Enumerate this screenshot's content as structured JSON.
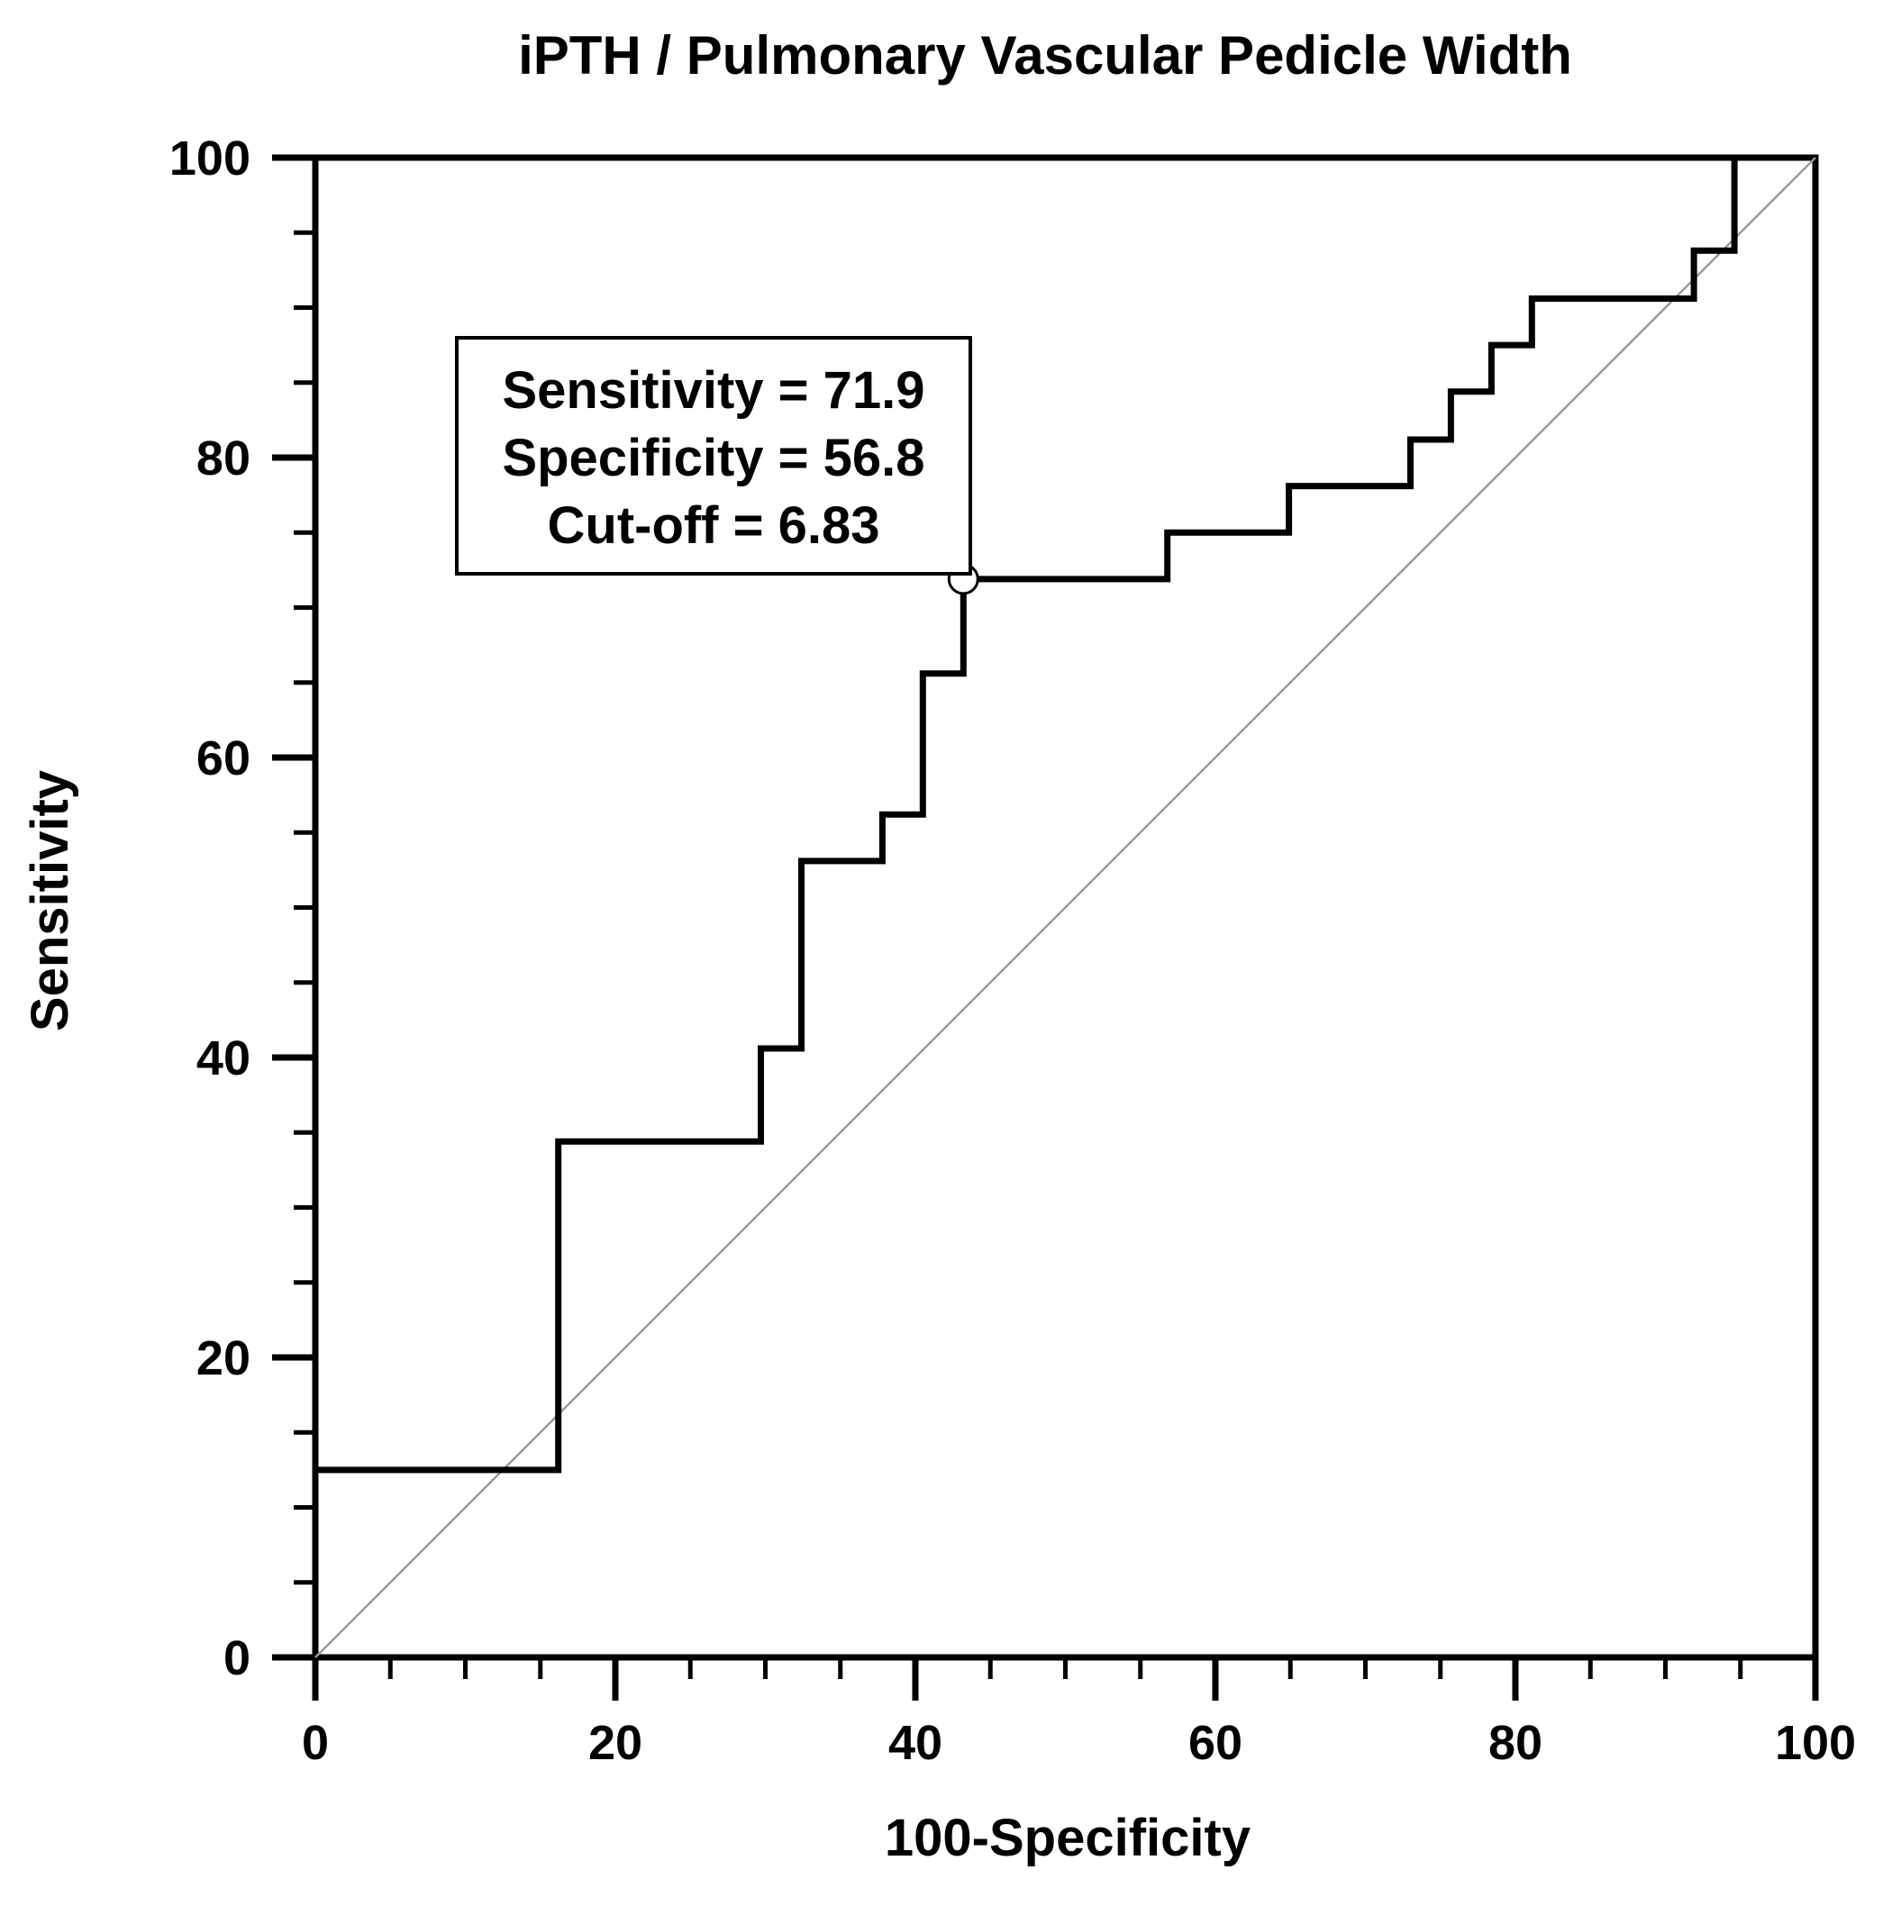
{
  "chart_data": {
    "type": "line",
    "title": "iPTH / Pulmonary Vascular Pedicle Width",
    "xlabel": "100-Specificity",
    "ylabel": "Sensitivity",
    "xlim": [
      0,
      100
    ],
    "ylim": [
      0,
      100
    ],
    "x_ticks": [
      0,
      20,
      40,
      60,
      80,
      100
    ],
    "y_ticks": [
      0,
      20,
      40,
      60,
      80,
      100
    ],
    "x_tick_labels": [
      "0",
      "20",
      "40",
      "60",
      "80",
      "100"
    ],
    "y_tick_labels": [
      "0",
      "20",
      "40",
      "60",
      "80",
      "100"
    ],
    "minor_tick_step": 5,
    "grid": false,
    "series": [
      {
        "name": "ROC curve",
        "style": "step",
        "points": [
          [
            0,
            12.5
          ],
          [
            16.2,
            12.5
          ],
          [
            16.2,
            34.4
          ],
          [
            29.7,
            34.4
          ],
          [
            29.7,
            40.6
          ],
          [
            32.4,
            40.6
          ],
          [
            32.4,
            53.1
          ],
          [
            37.8,
            53.1
          ],
          [
            37.8,
            56.2
          ],
          [
            40.5,
            56.2
          ],
          [
            40.5,
            65.6
          ],
          [
            43.2,
            65.6
          ],
          [
            43.2,
            71.9
          ],
          [
            56.8,
            71.9
          ],
          [
            56.8,
            75.0
          ],
          [
            64.9,
            75.0
          ],
          [
            64.9,
            78.1
          ],
          [
            73.0,
            78.1
          ],
          [
            73.0,
            81.2
          ],
          [
            75.7,
            81.2
          ],
          [
            75.7,
            84.4
          ],
          [
            78.4,
            84.4
          ],
          [
            78.4,
            87.5
          ],
          [
            81.1,
            87.5
          ],
          [
            81.1,
            90.6
          ],
          [
            91.9,
            90.6
          ],
          [
            91.9,
            93.8
          ],
          [
            94.6,
            93.8
          ],
          [
            94.6,
            100
          ]
        ]
      },
      {
        "name": "Reference line",
        "style": "diagonal",
        "points": [
          [
            0,
            0
          ],
          [
            100,
            100
          ]
        ]
      }
    ],
    "annotation": {
      "point": [
        43.2,
        71.9
      ],
      "lines": [
        "Sensitivity = 71.9",
        "Specificity = 56.8",
        "Cut-off = 6.83"
      ]
    },
    "colors": {
      "curve": "#000000",
      "reference": "#9a9a9a",
      "axis": "#000000"
    }
  }
}
